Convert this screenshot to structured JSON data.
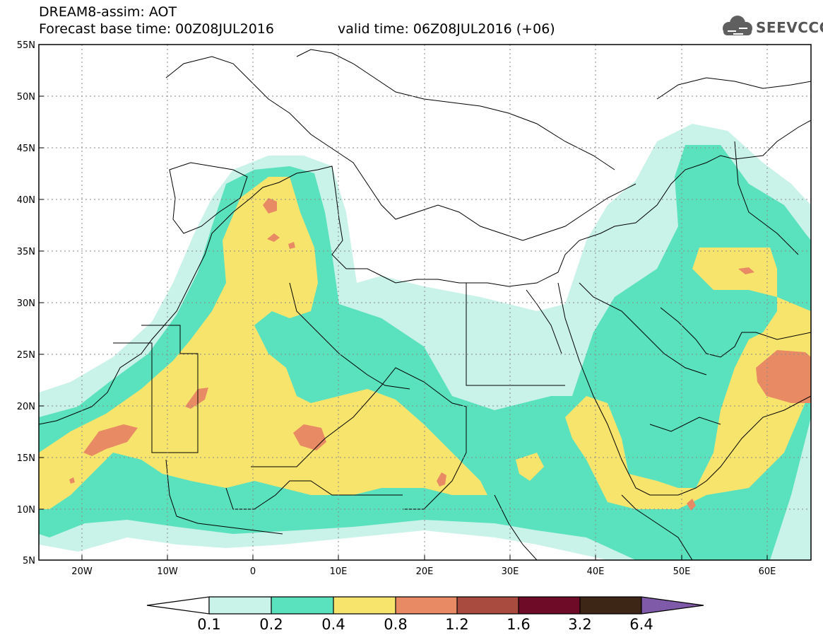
{
  "header": {
    "title": "DREAM8-assim: AOT",
    "base_time": "Forecast base time: 00Z08JUL2016",
    "valid_time": "valid time: 06Z08JUL2016 (+06)"
  },
  "logo": {
    "text": "SEEVCCC",
    "icon": "cloud-icon"
  },
  "axes": {
    "lat_labels": [
      "55N",
      "50N",
      "45N",
      "40N",
      "35N",
      "30N",
      "25N",
      "20N",
      "15N",
      "10N",
      "5N"
    ],
    "lon_labels": [
      "20W",
      "10W",
      "0",
      "10E",
      "20E",
      "30E",
      "40E",
      "50E",
      "60E"
    ],
    "lat_range": [
      5,
      55
    ],
    "lon_range": [
      -25,
      65
    ]
  },
  "colorbar": {
    "labels": [
      "0.1",
      "0.2",
      "0.4",
      "0.8",
      "1.2",
      "1.6",
      "3.2",
      "6.4"
    ],
    "colors": [
      "#c9f2e8",
      "#5ae1be",
      "#f7e46d",
      "#e88a63",
      "#a94c3f",
      "#6e0b26",
      "#3e2617",
      "#7f5aa8"
    ]
  }
}
